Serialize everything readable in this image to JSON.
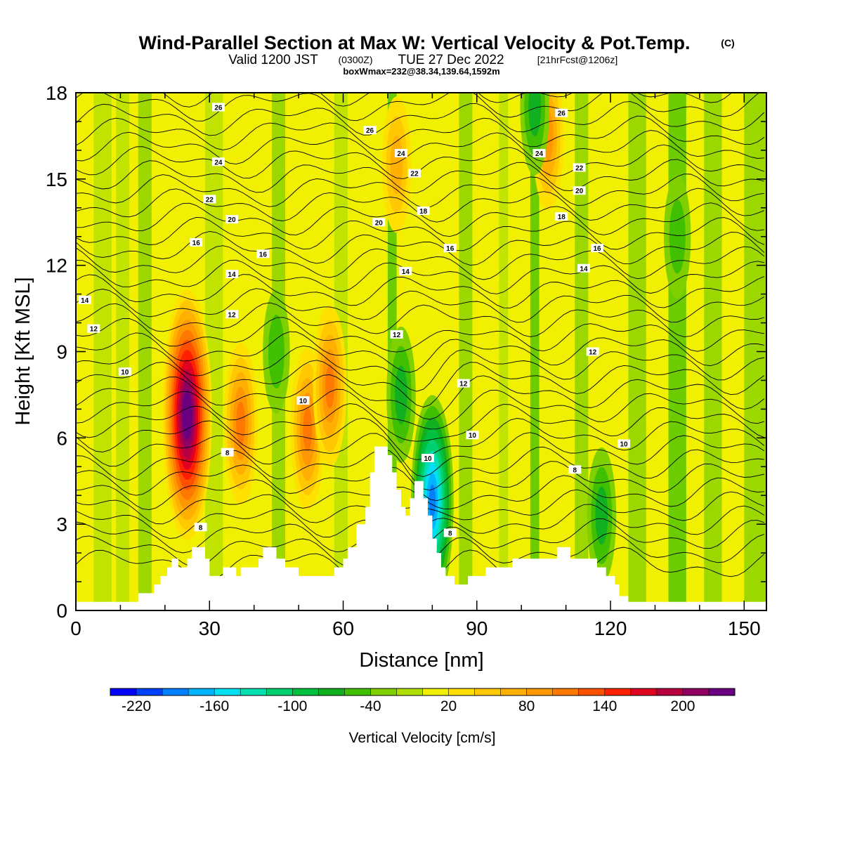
{
  "title": {
    "main": "Wind-Parallel Section at Max W: Vertical Velocity & Pot.Temp.",
    "copyright": "(C)",
    "valid_prefix": "Valid 1200 JST",
    "valid_z": "(0300Z)",
    "valid_date": "TUE 27 Dec 2022",
    "forecast_info": "[21hrFcst@1206z]",
    "box_info": "boxWmax=232@38.34,139.64,1592m"
  },
  "chart_data": {
    "type": "heatmap",
    "xlabel": "Distance [nm]",
    "ylabel": "Height [Kft MSL]",
    "xlim": [
      0,
      155
    ],
    "ylim": [
      0,
      18
    ],
    "x_ticks": [
      0,
      30,
      60,
      90,
      120,
      150
    ],
    "y_ticks": [
      0,
      3,
      6,
      9,
      12,
      15,
      18
    ],
    "colorbar": {
      "title": "Vertical Velocity [cm/s]",
      "range": [
        -240,
        240
      ],
      "step": 20,
      "tick_labels": [
        "-220",
        "-160",
        "-100",
        "-40",
        "20",
        "80",
        "140",
        "200"
      ],
      "colors": [
        "#0000ff",
        "#0040ff",
        "#0080ff",
        "#00b4ff",
        "#00e0f0",
        "#00e0b0",
        "#00d070",
        "#00c040",
        "#10b020",
        "#40c000",
        "#80d000",
        "#b0e000",
        "#f0f000",
        "#ffe000",
        "#ffc800",
        "#ffb000",
        "#ff9800",
        "#ff7800",
        "#ff5000",
        "#ff2000",
        "#e00020",
        "#b80040",
        "#900060",
        "#6a0080"
      ]
    },
    "w_features": [
      {
        "x": 25,
        "z": 6.8,
        "value": 232
      },
      {
        "x": 37,
        "z": 6.5,
        "value": 100
      },
      {
        "x": 52,
        "z": 6.3,
        "value": 90
      },
      {
        "x": 57,
        "z": 7.8,
        "value": 90
      },
      {
        "x": 72,
        "z": 15.5,
        "value": 60
      },
      {
        "x": 106,
        "z": 16.5,
        "value": 80
      },
      {
        "x": 80,
        "z": 3.8,
        "value": -180
      },
      {
        "x": 73,
        "z": 7.5,
        "value": -60
      },
      {
        "x": 45,
        "z": 9,
        "value": -40
      },
      {
        "x": 118,
        "z": 3.3,
        "value": -70
      },
      {
        "x": 135,
        "z": 13,
        "value": -50
      },
      {
        "x": 103,
        "z": 17.5,
        "value": -60
      }
    ],
    "terrain": [
      [
        0,
        0.3
      ],
      [
        14,
        0.3
      ],
      [
        14,
        0.6
      ],
      [
        17.5,
        0.6
      ],
      [
        17.5,
        0.9
      ],
      [
        19,
        0.9
      ],
      [
        19,
        1.2
      ],
      [
        20.5,
        1.2
      ],
      [
        20.5,
        1.5
      ],
      [
        21.5,
        1.5
      ],
      [
        21.5,
        1.8
      ],
      [
        23,
        1.8
      ],
      [
        23,
        1.5
      ],
      [
        25,
        1.5
      ],
      [
        25,
        1.8
      ],
      [
        26,
        1.8
      ],
      [
        26,
        2.2
      ],
      [
        29,
        2.2
      ],
      [
        29,
        1.8
      ],
      [
        30,
        1.8
      ],
      [
        30,
        1.2
      ],
      [
        33,
        1.2
      ],
      [
        33,
        1.5
      ],
      [
        36,
        1.5
      ],
      [
        36,
        1.2
      ],
      [
        37,
        1.2
      ],
      [
        37,
        1.5
      ],
      [
        41,
        1.5
      ],
      [
        41,
        1.8
      ],
      [
        42,
        1.8
      ],
      [
        42,
        2.2
      ],
      [
        45,
        2.2
      ],
      [
        45,
        1.8
      ],
      [
        47,
        1.8
      ],
      [
        47,
        1.5
      ],
      [
        50,
        1.5
      ],
      [
        50,
        1.2
      ],
      [
        58,
        1.2
      ],
      [
        58,
        1.5
      ],
      [
        60,
        1.5
      ],
      [
        60,
        1.8
      ],
      [
        61,
        1.8
      ],
      [
        61,
        2.2
      ],
      [
        63,
        2.2
      ],
      [
        63,
        3.0
      ],
      [
        65,
        3.0
      ],
      [
        65,
        3.6
      ],
      [
        66,
        3.6
      ],
      [
        66,
        4.8
      ],
      [
        67,
        4.8
      ],
      [
        67,
        5.7
      ],
      [
        70,
        5.7
      ],
      [
        70,
        5.4
      ],
      [
        71,
        5.4
      ],
      [
        71,
        4.8
      ],
      [
        72,
        4.8
      ],
      [
        72,
        4.2
      ],
      [
        73,
        4.2
      ],
      [
        73,
        3.6
      ],
      [
        74,
        3.6
      ],
      [
        74,
        3.3
      ],
      [
        75,
        3.3
      ],
      [
        75,
        3.9
      ],
      [
        76,
        3.9
      ],
      [
        76,
        4.5
      ],
      [
        78,
        4.5
      ],
      [
        78,
        3.9
      ],
      [
        79,
        3.9
      ],
      [
        79,
        3.3
      ],
      [
        80,
        3.3
      ],
      [
        80,
        2.5
      ],
      [
        81,
        2.5
      ],
      [
        81,
        2.0
      ],
      [
        82,
        2.0
      ],
      [
        82,
        1.5
      ],
      [
        83,
        1.5
      ],
      [
        83,
        1.2
      ],
      [
        85,
        1.2
      ],
      [
        85,
        0.9
      ],
      [
        88,
        0.9
      ],
      [
        88,
        1.2
      ],
      [
        92,
        1.2
      ],
      [
        92,
        1.5
      ],
      [
        98,
        1.5
      ],
      [
        98,
        1.8
      ],
      [
        108,
        1.8
      ],
      [
        108,
        2.2
      ],
      [
        111,
        2.2
      ],
      [
        111,
        1.8
      ],
      [
        117,
        1.8
      ],
      [
        117,
        1.5
      ],
      [
        119,
        1.5
      ],
      [
        119,
        1.2
      ],
      [
        121,
        1.2
      ],
      [
        121,
        0.9
      ],
      [
        122,
        0.9
      ],
      [
        122,
        0.5
      ],
      [
        124,
        0.5
      ],
      [
        124,
        0.3
      ],
      [
        155,
        0.3
      ]
    ],
    "theta_label_values": [
      "26",
      "24",
      "22",
      "20",
      "18",
      "16",
      "14",
      "12",
      "10",
      "8"
    ]
  }
}
